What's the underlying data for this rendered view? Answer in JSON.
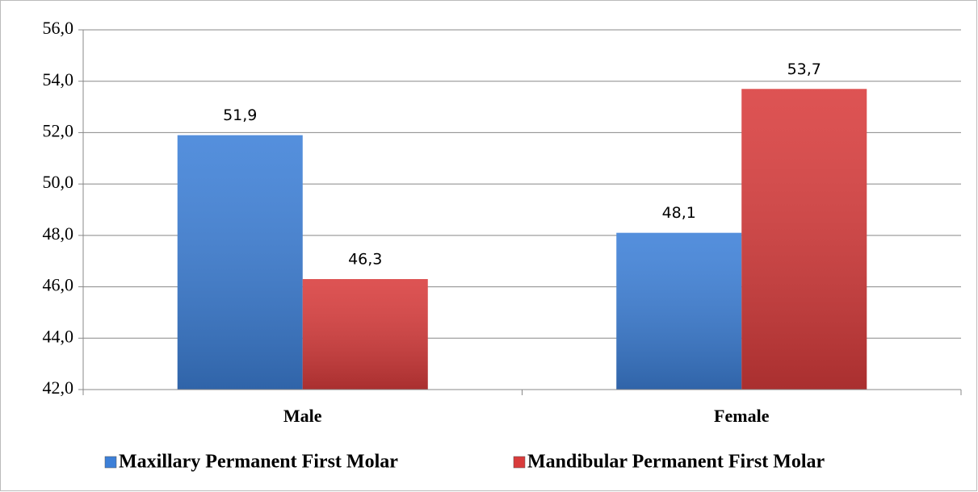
{
  "chart_data": {
    "type": "bar",
    "categories": [
      "Male",
      "Female"
    ],
    "series": [
      {
        "name": "Maxillary Permanent First Molar",
        "color": "#3d80d8",
        "values": [
          51.9,
          48.1
        ],
        "value_labels": [
          "51,9",
          "48,1"
        ]
      },
      {
        "name": "Mandibular Permanent First Molar",
        "color": "#d93c3c",
        "values": [
          46.3,
          53.7
        ],
        "value_labels": [
          "46,3",
          "53,7"
        ]
      }
    ],
    "ylim": [
      42,
      56
    ],
    "yticks": [
      {
        "value": 42,
        "label": "42,0"
      },
      {
        "value": 44,
        "label": "44,0"
      },
      {
        "value": 46,
        "label": "46,0"
      },
      {
        "value": 48,
        "label": "48,0"
      },
      {
        "value": 50,
        "label": "50,0"
      },
      {
        "value": 52,
        "label": "52,0"
      },
      {
        "value": 54,
        "label": "54,0"
      },
      {
        "value": 56,
        "label": "56,0"
      }
    ],
    "grid": true,
    "legend": "bottom"
  }
}
